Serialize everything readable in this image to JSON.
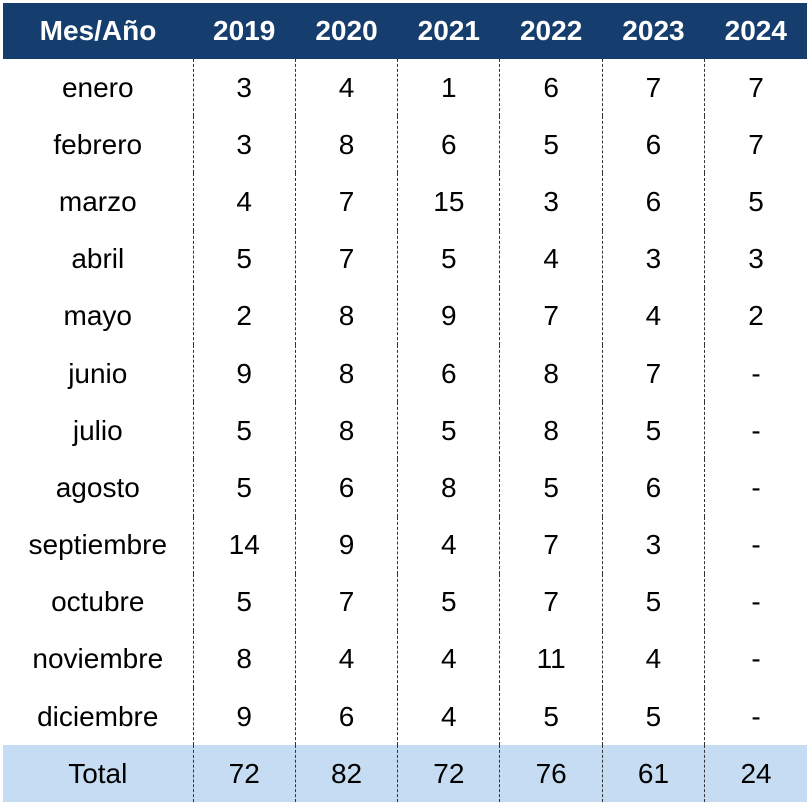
{
  "table": {
    "header_label": "Mes/Año",
    "years": [
      "2019",
      "2020",
      "2021",
      "2022",
      "2023",
      "2024"
    ],
    "rows": [
      {
        "month": "enero",
        "values": [
          "3",
          "4",
          "1",
          "6",
          "7",
          "7"
        ]
      },
      {
        "month": "febrero",
        "values": [
          "3",
          "8",
          "6",
          "5",
          "6",
          "7"
        ]
      },
      {
        "month": "marzo",
        "values": [
          "4",
          "7",
          "15",
          "3",
          "6",
          "5"
        ]
      },
      {
        "month": "abril",
        "values": [
          "5",
          "7",
          "5",
          "4",
          "3",
          "3"
        ]
      },
      {
        "month": "mayo",
        "values": [
          "2",
          "8",
          "9",
          "7",
          "4",
          "2"
        ]
      },
      {
        "month": "junio",
        "values": [
          "9",
          "8",
          "6",
          "8",
          "7",
          "-"
        ]
      },
      {
        "month": "julio",
        "values": [
          "5",
          "8",
          "5",
          "8",
          "5",
          "-"
        ]
      },
      {
        "month": "agosto",
        "values": [
          "5",
          "6",
          "8",
          "5",
          "6",
          "-"
        ]
      },
      {
        "month": "septiembre",
        "values": [
          "14",
          "9",
          "4",
          "7",
          "3",
          "-"
        ]
      },
      {
        "month": "octubre",
        "values": [
          "5",
          "7",
          "5",
          "7",
          "5",
          "-"
        ]
      },
      {
        "month": "noviembre",
        "values": [
          "8",
          "4",
          "4",
          "11",
          "4",
          "-"
        ]
      },
      {
        "month": "diciembre",
        "values": [
          "9",
          "6",
          "4",
          "5",
          "5",
          "-"
        ]
      }
    ],
    "total": {
      "label": "Total",
      "values": [
        "72",
        "82",
        "72",
        "76",
        "61",
        "24"
      ]
    }
  },
  "colors": {
    "header_bg": "#153d6e",
    "header_text": "#ffffff",
    "total_bg": "#c5dcf2"
  }
}
